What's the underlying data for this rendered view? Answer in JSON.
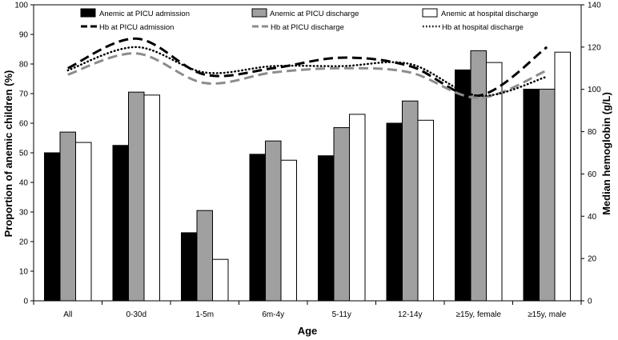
{
  "chart_data": {
    "type": "bar",
    "xlabel": "Age",
    "ylabel": "Proportion of anemic children (%)",
    "y2label": "Median hemoglobin (g/L)",
    "ylim": [
      0,
      100
    ],
    "y2lim": [
      0,
      140
    ],
    "yticks": [
      "0",
      "10",
      "20",
      "30",
      "40",
      "50",
      "60",
      "70",
      "80",
      "90",
      "100"
    ],
    "y2ticks": [
      "0",
      "20",
      "40",
      "60",
      "80",
      "100",
      "120",
      "140"
    ],
    "categories": [
      "All",
      "0-30d",
      "1-5m",
      "6m-4y",
      "5-11y",
      "12-14y",
      "≥15y, female",
      "≥15y, male"
    ],
    "series": [
      {
        "name": "Anemic at PICU admission",
        "kind": "bar",
        "color": "#000000",
        "values": [
          50,
          52.5,
          23,
          49.5,
          49,
          60,
          78,
          71.5
        ]
      },
      {
        "name": "Anemic at PICU discharge",
        "kind": "bar",
        "color": "#a0a0a0",
        "values": [
          57,
          70.5,
          30.5,
          54,
          58.5,
          67.5,
          84.5,
          71.5
        ]
      },
      {
        "name": "Anemic at hospital discharge",
        "kind": "bar",
        "color": "#ffffff",
        "values": [
          53.5,
          69.5,
          14,
          47.5,
          63,
          61,
          80.5,
          84
        ]
      }
    ],
    "lines": [
      {
        "name": "Hb at PICU admission",
        "axis": "right",
        "color": "#000000",
        "style": "dash",
        "values": [
          110,
          124,
          107,
          110,
          115,
          111,
          97,
          120
        ]
      },
      {
        "name": "Hb at PICU discharge",
        "axis": "right",
        "color": "#8c8c8c",
        "style": "dash",
        "values": [
          107,
          117,
          103,
          108,
          110,
          108,
          96,
          109
        ]
      },
      {
        "name": "Hb at hospital discharge",
        "axis": "right",
        "color": "#000000",
        "style": "dot",
        "values": [
          109,
          120,
          108,
          111,
          111,
          112,
          97,
          106
        ]
      }
    ]
  }
}
